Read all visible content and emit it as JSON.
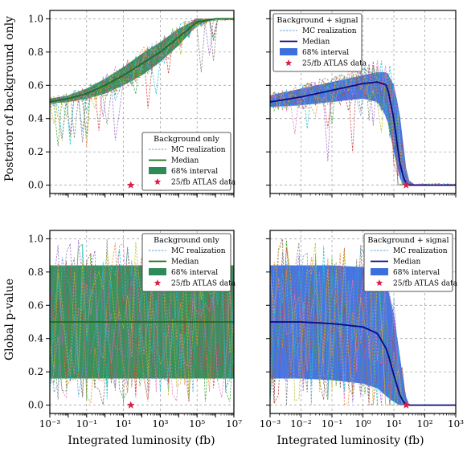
{
  "chart_data": [
    {
      "type": "line",
      "panel": "top-left",
      "ylabel": "Posterior of background only",
      "xlabel": "",
      "xscale": "log",
      "xlim": [
        0.001,
        10000000
      ],
      "ylim": [
        0,
        1
      ],
      "xticks": [
        "10⁻³",
        "10⁻¹",
        "10¹",
        "10³",
        "10⁵",
        "10⁷"
      ],
      "yticks": [
        "0.0",
        "0.2",
        "0.4",
        "0.6",
        "0.8",
        "1.0"
      ],
      "show_xtick_labels": false,
      "grid": true,
      "legend": {
        "title": "Background only",
        "placement": "lower-right",
        "entries": [
          "MC realization",
          "Median",
          "68% interval",
          "25/fb ATLAS data"
        ]
      },
      "series": [
        {
          "name": "Median",
          "x": [
            0.001,
            0.01,
            0.1,
            1,
            10,
            100,
            1000,
            10000,
            100000,
            1000000,
            10000000
          ],
          "y": [
            0.5,
            0.52,
            0.55,
            0.6,
            0.66,
            0.73,
            0.8,
            0.89,
            0.98,
            1.0,
            1.0
          ]
        },
        {
          "name": "68% interval",
          "x": [
            0.001,
            0.01,
            0.1,
            1,
            10,
            100,
            1000,
            10000,
            100000,
            1000000,
            10000000
          ],
          "lower": [
            0.49,
            0.5,
            0.52,
            0.55,
            0.6,
            0.66,
            0.74,
            0.84,
            0.96,
            1.0,
            1.0
          ],
          "upper": [
            0.52,
            0.54,
            0.58,
            0.64,
            0.71,
            0.79,
            0.86,
            0.94,
            1.0,
            1.0,
            1.0
          ]
        },
        {
          "name": "25/fb ATLAS data",
          "x": [
            25
          ],
          "y": [
            0.0
          ]
        }
      ]
    },
    {
      "type": "line",
      "panel": "top-right",
      "ylabel": "",
      "xlabel": "",
      "xscale": "log",
      "xlim": [
        0.001,
        1000
      ],
      "ylim": [
        0,
        1
      ],
      "xticks": [
        "10⁻³",
        "10⁻²",
        "10⁻¹",
        "10⁰",
        "10¹",
        "10²",
        "10³"
      ],
      "yticks": [
        "0.0",
        "0.2",
        "0.4",
        "0.6",
        "0.8",
        "1.0"
      ],
      "show_xtick_labels": false,
      "grid": true,
      "legend": {
        "title": "Background + signal",
        "placement": "upper-left",
        "entries": [
          "MC realization",
          "Median",
          "68% interval",
          "25/fb ATLAS data"
        ]
      },
      "series": [
        {
          "name": "Median",
          "x": [
            0.001,
            0.01,
            0.1,
            1,
            3,
            6,
            10,
            15,
            20,
            25,
            30,
            50,
            1000
          ],
          "y": [
            0.5,
            0.53,
            0.57,
            0.61,
            0.62,
            0.6,
            0.4,
            0.15,
            0.05,
            0.01,
            0.0,
            0.0,
            0.0
          ]
        },
        {
          "name": "68% interval",
          "x": [
            0.001,
            0.01,
            0.1,
            1,
            3,
            6,
            10,
            15,
            20,
            25,
            30,
            50,
            1000
          ],
          "lower": [
            0.47,
            0.48,
            0.5,
            0.52,
            0.5,
            0.4,
            0.2,
            0.05,
            0.0,
            0.0,
            0.0,
            0.0,
            0.0
          ],
          "upper": [
            0.54,
            0.58,
            0.62,
            0.66,
            0.68,
            0.68,
            0.6,
            0.45,
            0.25,
            0.1,
            0.03,
            0.0,
            0.0
          ]
        },
        {
          "name": "25/fb ATLAS data",
          "x": [
            25
          ],
          "y": [
            0.0
          ]
        }
      ]
    },
    {
      "type": "line",
      "panel": "bottom-left",
      "ylabel": "Global p-value",
      "xlabel": "Integrated luminosity (fb)",
      "xscale": "log",
      "xlim": [
        0.001,
        10000000
      ],
      "ylim": [
        0,
        1
      ],
      "xticks": [
        "10⁻³",
        "10⁻¹",
        "10¹",
        "10³",
        "10⁵",
        "10⁷"
      ],
      "yticks": [
        "0.0",
        "0.2",
        "0.4",
        "0.6",
        "0.8",
        "1.0"
      ],
      "show_xtick_labels": true,
      "grid": true,
      "legend": {
        "title": "Background only",
        "placement": "upper-right",
        "entries": [
          "MC realization",
          "Median",
          "68% interval",
          "25/fb ATLAS data"
        ]
      },
      "series": [
        {
          "name": "Median",
          "x": [
            0.001,
            10000000
          ],
          "y": [
            0.5,
            0.5
          ]
        },
        {
          "name": "68% interval",
          "x": [
            0.001,
            10000000
          ],
          "lower": [
            0.16,
            0.16
          ],
          "upper": [
            0.84,
            0.84
          ]
        },
        {
          "name": "25/fb ATLAS data",
          "x": [
            25
          ],
          "y": [
            0.0
          ]
        }
      ]
    },
    {
      "type": "line",
      "panel": "bottom-right",
      "ylabel": "",
      "xlabel": "Integrated luminosity (fb)",
      "xscale": "log",
      "xlim": [
        0.001,
        1000
      ],
      "ylim": [
        0,
        1
      ],
      "xticks": [
        "10⁻³",
        "10⁻²",
        "10⁻¹",
        "10⁰",
        "10¹",
        "10²",
        "10³"
      ],
      "yticks": [
        "0.0",
        "0.2",
        "0.4",
        "0.6",
        "0.8",
        "1.0"
      ],
      "show_xtick_labels": true,
      "grid": true,
      "legend": {
        "title": "Background + signal",
        "placement": "upper-right",
        "entries": [
          "MC realization",
          "Median",
          "68% interval",
          "25/fb ATLAS data"
        ]
      },
      "series": [
        {
          "name": "Median",
          "x": [
            0.001,
            0.01,
            0.1,
            1,
            3,
            6,
            10,
            15,
            20,
            25,
            30,
            50,
            1000
          ],
          "y": [
            0.5,
            0.5,
            0.49,
            0.47,
            0.43,
            0.33,
            0.18,
            0.07,
            0.02,
            0.005,
            0.0,
            0.0,
            0.0
          ]
        },
        {
          "name": "68% interval",
          "x": [
            0.001,
            0.01,
            0.1,
            1,
            3,
            6,
            10,
            15,
            20,
            25,
            30,
            50,
            1000
          ],
          "lower": [
            0.16,
            0.16,
            0.15,
            0.13,
            0.1,
            0.05,
            0.02,
            0.0,
            0.0,
            0.0,
            0.0,
            0.0,
            0.0
          ],
          "upper": [
            0.84,
            0.84,
            0.84,
            0.83,
            0.8,
            0.72,
            0.55,
            0.32,
            0.15,
            0.05,
            0.0,
            0.0,
            0.0
          ]
        },
        {
          "name": "25/fb ATLAS data",
          "x": [
            25
          ],
          "y": [
            0.0
          ]
        }
      ]
    }
  ],
  "colors": {
    "bg_band": "#2e8b57",
    "bg_median": "#1f6b1f",
    "sig_band": "#3b6fe0",
    "sig_median": "#0a0a80",
    "star": "#d9204a",
    "grid": "#999999",
    "mc_line": "#5fa0d8"
  }
}
